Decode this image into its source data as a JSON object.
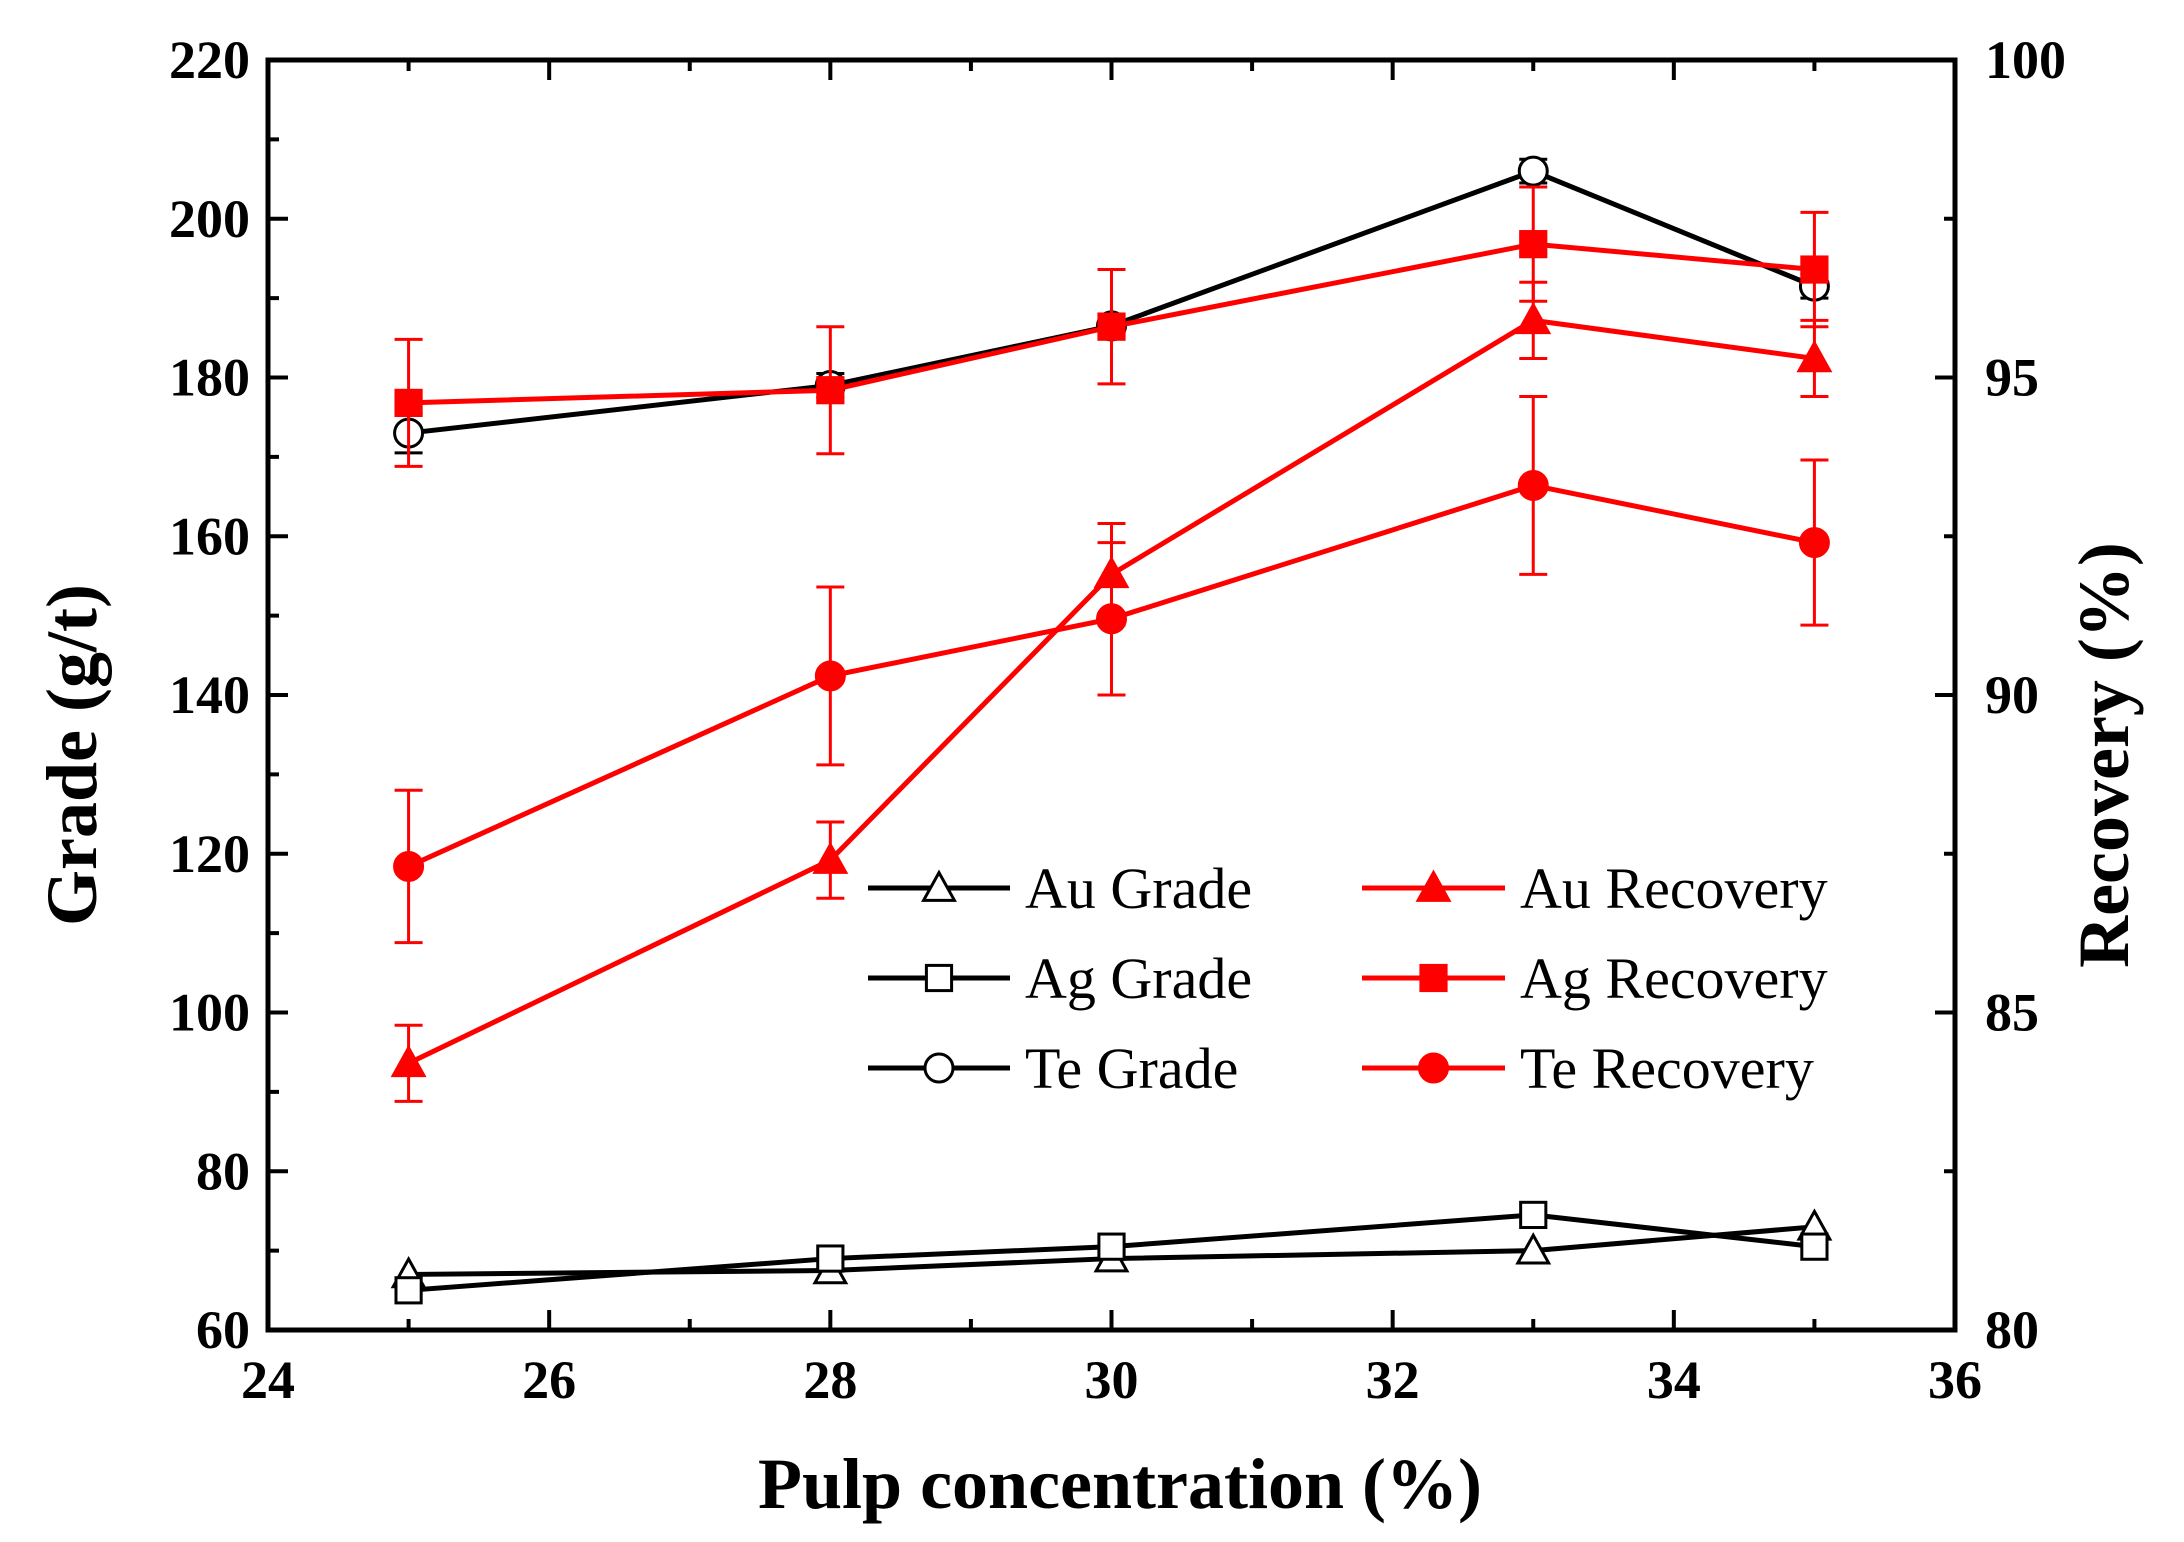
{
  "chart_data": {
    "type": "line",
    "xlabel": "Pulp concentration (%)",
    "ylabel_left": "Grade (g/t)",
    "ylabel_right": "Recovery (%)",
    "xlim": [
      24,
      36
    ],
    "ylim_left": [
      60,
      220
    ],
    "ylim_right": [
      80,
      100
    ],
    "x_ticks": [
      24,
      26,
      28,
      30,
      32,
      34,
      36
    ],
    "y_left_ticks": [
      60,
      80,
      100,
      120,
      140,
      160,
      180,
      200,
      220
    ],
    "y_right_ticks": [
      80,
      85,
      90,
      95,
      100
    ],
    "x": [
      25,
      28,
      30,
      33,
      35
    ],
    "grid": false,
    "legend_position": "center-right",
    "series": [
      {
        "name": "Au Grade",
        "axis": "left",
        "color": "#000000",
        "marker": "triangle",
        "filled": false,
        "values": [
          67,
          67.5,
          69,
          70,
          73
        ],
        "errors": [
          0,
          0,
          0,
          0,
          0
        ]
      },
      {
        "name": "Ag Grade",
        "axis": "left",
        "color": "#000000",
        "marker": "square",
        "filled": false,
        "values": [
          65,
          69,
          70.5,
          74.5,
          70.5
        ],
        "errors": [
          0,
          0,
          0,
          0,
          0
        ]
      },
      {
        "name": "Te Grade",
        "axis": "left",
        "color": "#000000",
        "marker": "circle",
        "filled": false,
        "values": [
          173,
          179,
          186.5,
          206,
          191.5
        ],
        "errors": [
          2.5,
          1.5,
          1.5,
          1.5,
          1.5
        ]
      },
      {
        "name": "Au Recovery",
        "axis": "right",
        "color": "#ff0000",
        "marker": "triangle",
        "filled": true,
        "values": [
          84.2,
          87.4,
          91.9,
          95.9,
          95.3
        ],
        "errors": [
          0.6,
          0.6,
          0.8,
          0.6,
          0.6
        ]
      },
      {
        "name": "Ag Recovery",
        "axis": "right",
        "color": "#ff0000",
        "marker": "square",
        "filled": true,
        "values": [
          94.6,
          94.8,
          95.8,
          97.1,
          96.7
        ],
        "errors": [
          1.0,
          1.0,
          0.9,
          0.9,
          0.9
        ]
      },
      {
        "name": "Te Recovery",
        "axis": "right",
        "color": "#ff0000",
        "marker": "circle",
        "filled": true,
        "values": [
          87.3,
          90.3,
          91.2,
          93.3,
          92.4
        ],
        "errors": [
          1.2,
          1.4,
          1.2,
          1.4,
          1.3
        ]
      }
    ]
  }
}
